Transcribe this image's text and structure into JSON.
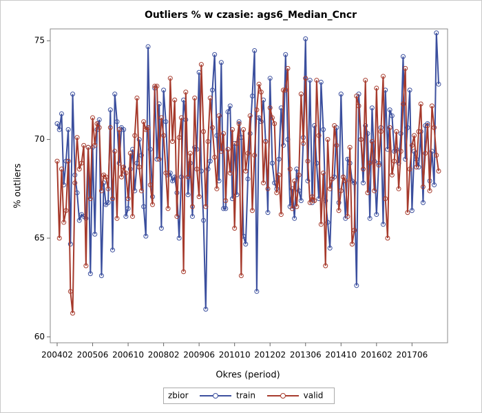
{
  "chart_data": {
    "type": "line",
    "title": "Outliers % w czasie: ags6_Median_Cncr",
    "x_label": "Okres (period)",
    "y_label": "% outliers",
    "legend_title": "zbior",
    "categories": [
      "200402",
      null,
      null,
      null,
      null,
      null,
      null,
      null,
      null,
      null,
      null,
      null,
      null,
      null,
      null,
      null,
      "200506",
      null,
      null,
      null,
      null,
      null,
      null,
      null,
      null,
      null,
      null,
      null,
      null,
      null,
      null,
      null,
      "200610",
      null,
      null,
      null,
      null,
      null,
      null,
      null,
      null,
      null,
      null,
      null,
      null,
      null,
      null,
      null,
      "200802",
      null,
      null,
      null,
      null,
      null,
      null,
      null,
      null,
      null,
      null,
      null,
      null,
      null,
      null,
      null,
      "200906",
      null,
      null,
      null,
      null,
      null,
      null,
      null,
      null,
      null,
      null,
      null,
      null,
      null,
      null,
      null,
      "201010",
      null,
      null,
      null,
      null,
      null,
      null,
      null,
      null,
      null,
      null,
      null,
      null,
      null,
      null,
      null,
      "201202",
      null,
      null,
      null,
      null,
      null,
      null,
      null,
      null,
      null,
      null,
      null,
      null,
      null,
      null,
      null,
      "201306",
      null,
      null,
      null,
      null,
      null,
      null,
      null,
      null,
      null,
      null,
      null,
      null,
      null,
      null,
      null,
      "201410",
      null,
      null,
      null,
      null,
      null,
      null,
      null,
      null,
      null,
      null,
      null,
      null,
      null,
      null,
      null,
      "201602",
      null,
      null,
      null,
      null,
      null,
      null,
      null,
      null,
      null,
      null,
      null,
      null,
      null,
      null,
      null,
      "201706",
      null,
      null,
      null,
      null,
      null,
      null,
      null,
      null,
      null,
      null,
      null,
      null
    ],
    "series": [
      {
        "name": "train",
        "color": "#3b4f9e",
        "values": [
          70.8,
          70.5,
          71.3,
          67.7,
          68.9,
          70.5,
          64.7,
          72.3,
          68.2,
          67.3,
          65.9,
          66.2,
          66.1,
          66.0,
          69.6,
          63.2,
          69.6,
          65.2,
          70.5,
          71.0,
          63.1,
          67.8,
          66.7,
          66.8,
          71.5,
          64.4,
          72.3,
          70.9,
          68.8,
          70.6,
          70.5,
          66.1,
          66.5,
          68.5,
          69.5,
          67.4,
          68.8,
          70.0,
          69.2,
          66.6,
          65.1,
          74.7,
          69.5,
          67.1,
          72.6,
          69.0,
          71.8,
          65.5,
          72.5,
          70.9,
          68.2,
          68.3,
          67.9,
          68.1,
          67.3,
          65.0,
          68.1,
          72.0,
          71.0,
          67.2,
          68.8,
          66.1,
          69.6,
          69.5,
          73.4,
          68.4,
          65.9,
          61.4,
          68.5,
          68.9,
          72.5,
          74.3,
          70.2,
          67.9,
          73.9,
          66.5,
          66.5,
          71.4,
          71.7,
          67.0,
          69.8,
          67.2,
          70.9,
          70.1,
          65.1,
          64.7,
          68.0,
          70.3,
          72.2,
          74.5,
          62.3,
          71.1,
          70.9,
          72.0,
          69.9,
          66.3,
          73.1,
          68.8,
          67.8,
          67.5,
          69.0,
          71.6,
          69.7,
          74.3,
          70.0,
          66.6,
          67.5,
          66.0,
          68.5,
          67.4,
          66.9,
          70.1,
          75.1,
          67.9,
          73.0,
          66.8,
          70.7,
          68.8,
          67.0,
          72.9,
          70.5,
          66.9,
          65.8,
          64.5,
          68.0,
          68.1,
          70.6,
          66.8,
          72.3,
          68.1,
          66.0,
          69.0,
          68.8,
          67.9,
          67.8,
          62.6,
          72.3,
          70.0,
          67.8,
          70.7,
          70.3,
          66.0,
          71.6,
          68.9,
          66.2,
          68.8,
          70.6,
          65.7,
          72.5,
          69.5,
          71.5,
          71.2,
          69.4,
          69.5,
          68.8,
          70.3,
          74.2,
          69.0,
          70.6,
          72.5,
          66.4,
          69.4,
          69.0,
          68.6,
          70.4,
          66.8,
          70.7,
          70.8,
          67.9,
          69.4,
          67.7,
          75.4,
          72.8
        ]
      },
      {
        "name": "valid",
        "color": "#a63a2c",
        "values": [
          68.9,
          65.0,
          68.5,
          65.8,
          66.4,
          68.9,
          62.3,
          61.2,
          67.8,
          70.1,
          68.5,
          68.8,
          69.7,
          63.6,
          69.6,
          67.0,
          71.1,
          69.7,
          70.8,
          70.6,
          67.4,
          68.2,
          68.1,
          67.5,
          70.6,
          67.0,
          69.4,
          66.0,
          70.5,
          68.1,
          68.6,
          68.3,
          67.0,
          69.3,
          66.1,
          70.2,
          72.1,
          68.6,
          67.4,
          70.9,
          70.5,
          70.6,
          67.7,
          66.7,
          72.7,
          72.7,
          69.0,
          71.1,
          70.2,
          68.3,
          66.5,
          73.1,
          69.9,
          72.0,
          66.1,
          70.1,
          71.1,
          63.3,
          72.4,
          68.1,
          69.3,
          66.6,
          72.1,
          68.5,
          67.1,
          73.8,
          70.4,
          66.6,
          69.9,
          72.1,
          70.6,
          69.1,
          67.5,
          71.2,
          69.4,
          70.3,
          66.9,
          69.5,
          68.3,
          70.5,
          65.5,
          69.8,
          70.8,
          63.1,
          70.5,
          68.4,
          69.3,
          71.2,
          66.4,
          69.2,
          71.5,
          72.8,
          72.4,
          67.8,
          69.9,
          67.5,
          71.6,
          71.1,
          70.8,
          67.3,
          68.2,
          66.2,
          72.5,
          72.5,
          73.6,
          68.5,
          66.5,
          67.9,
          66.6,
          68.2,
          72.3,
          69.8,
          73.1,
          68.9,
          66.8,
          67.1,
          66.9,
          73.0,
          70.2,
          65.7,
          68.3,
          63.6,
          70.0,
          67.5,
          68.0,
          70.7,
          69.7,
          66.4,
          67.4,
          68.1,
          67.9,
          66.1,
          69.6,
          64.7,
          65.4,
          72.2,
          71.7,
          70.0,
          68.5,
          73.0,
          67.3,
          68.8,
          69.9,
          67.4,
          72.6,
          68.7,
          70.4,
          73.2,
          67.0,
          65.0,
          70.6,
          68.2,
          68.9,
          70.4,
          67.5,
          69.4,
          71.8,
          73.6,
          66.3,
          68.5,
          69.7,
          70.2,
          68.6,
          70.4,
          71.8,
          67.6,
          69.3,
          70.7,
          67.4,
          71.7,
          70.6,
          69.2,
          68.4
        ]
      }
    ],
    "ylim": [
      59.7,
      75.6
    ],
    "yticks": [
      60,
      65,
      70,
      75
    ]
  }
}
